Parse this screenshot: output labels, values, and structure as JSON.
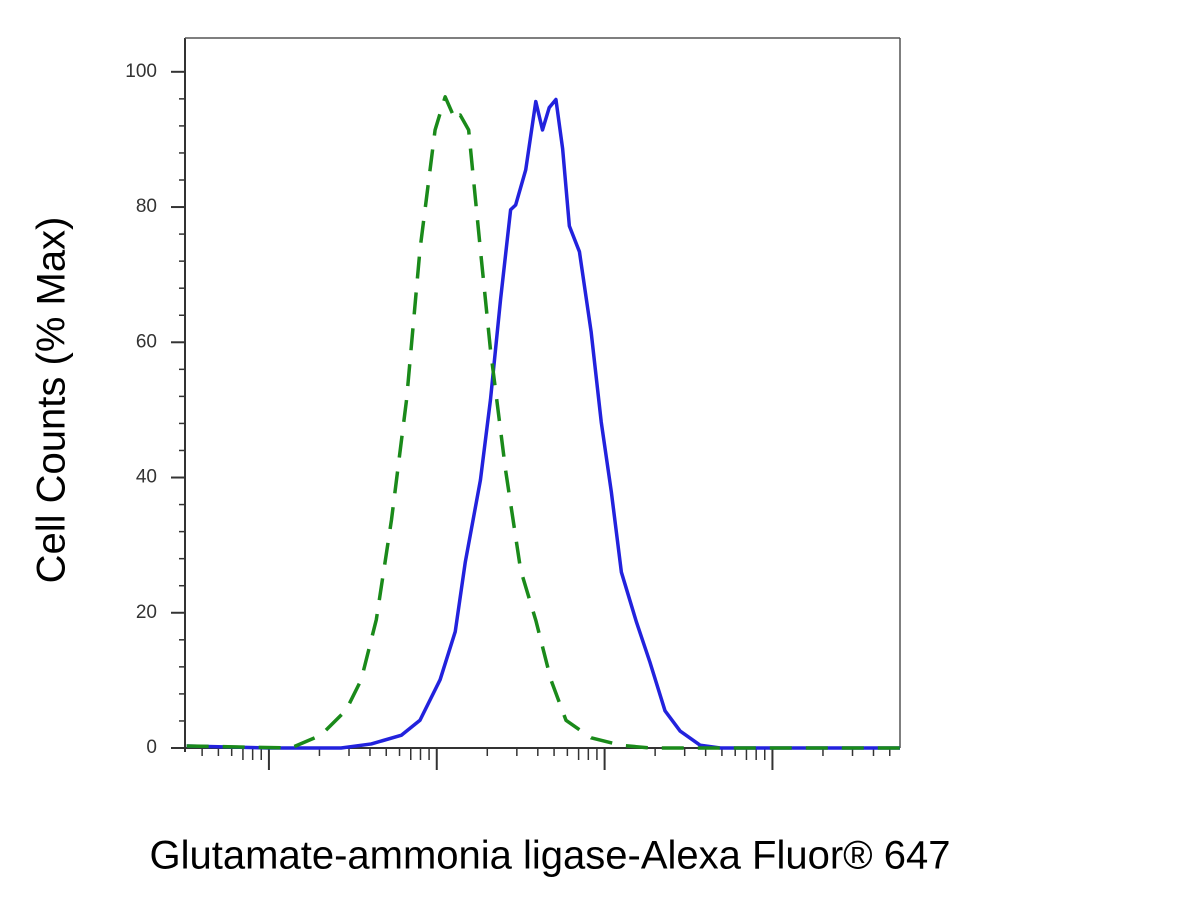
{
  "chart_data": {
    "type": "line",
    "x_label": "Glutamate-ammonia ligase-Alexa Fluor® 647",
    "y_label": "Cell Counts (% Max)",
    "xlim": [
      0.5,
      4.76
    ],
    "xticks": [
      1,
      2,
      3,
      4
    ],
    "x_log_minor_ticks": true,
    "ylim": [
      0,
      105
    ],
    "yticks": [
      0,
      20,
      40,
      60,
      80,
      100
    ],
    "series": [
      {
        "color": "#2222dd",
        "dash": false,
        "x": [
          0.51,
          1.01,
          1.43,
          1.61,
          1.79,
          1.9,
          2.02,
          2.11,
          2.17,
          2.26,
          2.32,
          2.38,
          2.44,
          2.47,
          2.53,
          2.59,
          2.63,
          2.67,
          2.71,
          2.75,
          2.79,
          2.85,
          2.92,
          2.98,
          3.04,
          3.1,
          3.19,
          3.27,
          3.36,
          3.45,
          3.57,
          3.69,
          4.76
        ],
        "values": [
          0.3,
          0,
          0,
          0.6,
          1.9,
          4.1,
          10.1,
          17.2,
          27.5,
          39.6,
          51.5,
          66.3,
          79.6,
          80.3,
          85.5,
          95.6,
          91.4,
          94.7,
          95.9,
          88.6,
          77.2,
          73.4,
          61.5,
          48.2,
          37.9,
          26.0,
          18.6,
          12.7,
          5.5,
          2.5,
          0.4,
          0,
          0
        ]
      },
      {
        "color": "#1a8a1a",
        "dash": true,
        "x": [
          0.51,
          1.13,
          1.31,
          1.46,
          1.55,
          1.64,
          1.73,
          1.82,
          1.9,
          1.99,
          2.05,
          2.11,
          2.14,
          2.19,
          2.26,
          2.32,
          2.41,
          2.5,
          2.59,
          2.68,
          2.77,
          2.92,
          3.1,
          3.27,
          4.76
        ],
        "values": [
          0.3,
          0,
          1.9,
          5.6,
          10.1,
          19.0,
          33.7,
          51.5,
          73.7,
          91.4,
          96.3,
          92.9,
          93.6,
          91.4,
          73.7,
          58.9,
          41.1,
          26.3,
          18.9,
          10.1,
          4.1,
          1.5,
          0.4,
          0,
          0
        ]
      }
    ]
  }
}
